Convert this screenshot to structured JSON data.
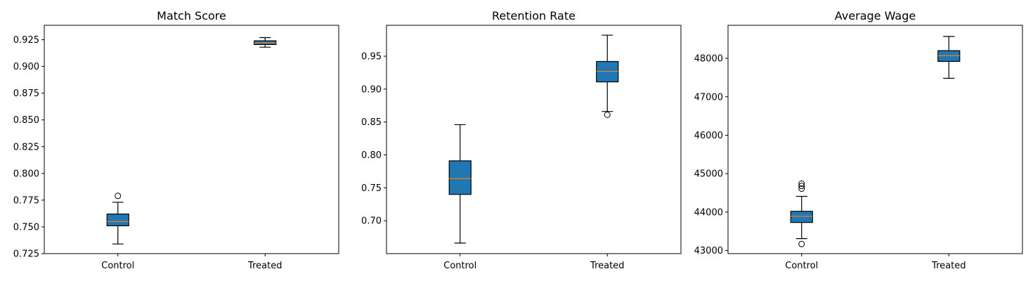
{
  "chart_data": [
    {
      "type": "box",
      "title": "Match Score",
      "categories": [
        "Control",
        "Treated"
      ],
      "ylim": [
        0.725,
        0.9385
      ],
      "yticks": [
        0.725,
        0.75,
        0.775,
        0.8,
        0.825,
        0.85,
        0.875,
        0.9,
        0.925
      ],
      "ytick_labels": [
        "0.725",
        "0.750",
        "0.775",
        "0.800",
        "0.825",
        "0.850",
        "0.875",
        "0.900",
        "0.925"
      ],
      "boxes": [
        {
          "category": "Control",
          "whislo": 0.734,
          "q1": 0.751,
          "median": 0.755,
          "q3": 0.762,
          "whishi": 0.773,
          "fliers": [
            0.779
          ]
        },
        {
          "category": "Treated",
          "whislo": 0.918,
          "q1": 0.9205,
          "median": 0.922,
          "q3": 0.924,
          "whishi": 0.927,
          "fliers": []
        }
      ]
    },
    {
      "type": "box",
      "title": "Retention Rate",
      "categories": [
        "Control",
        "Treated"
      ],
      "ylim": [
        0.65,
        0.997
      ],
      "yticks": [
        0.7,
        0.75,
        0.8,
        0.85,
        0.9,
        0.95
      ],
      "ytick_labels": [
        "0.70",
        "0.75",
        "0.80",
        "0.85",
        "0.90",
        "0.95"
      ],
      "boxes": [
        {
          "category": "Control",
          "whislo": 0.666,
          "q1": 0.74,
          "median": 0.764,
          "q3": 0.791,
          "whishi": 0.846,
          "fliers": []
        },
        {
          "category": "Treated",
          "whislo": 0.866,
          "q1": 0.911,
          "median": 0.927,
          "q3": 0.942,
          "whishi": 0.982,
          "fliers": [
            0.861
          ]
        }
      ]
    },
    {
      "type": "box",
      "title": "Average Wage",
      "categories": [
        "Control",
        "Treated"
      ],
      "ylim": [
        42920,
        48860
      ],
      "yticks": [
        43000,
        44000,
        45000,
        46000,
        47000,
        48000
      ],
      "ytick_labels": [
        "43000",
        "44000",
        "45000",
        "46000",
        "47000",
        "48000"
      ],
      "boxes": [
        {
          "category": "Control",
          "whislo": 43310,
          "q1": 43730,
          "median": 43890,
          "q3": 44020,
          "whishi": 44410,
          "fliers": [
            43170,
            44610,
            44680,
            44740
          ]
        },
        {
          "category": "Treated",
          "whislo": 47480,
          "q1": 47920,
          "median": 48070,
          "q3": 48200,
          "whishi": 48570,
          "fliers": []
        }
      ]
    }
  ],
  "colors": {
    "box_fill": "#1f77b4",
    "median": "#ff7f0e",
    "line": "#000000",
    "background": "#ffffff"
  }
}
